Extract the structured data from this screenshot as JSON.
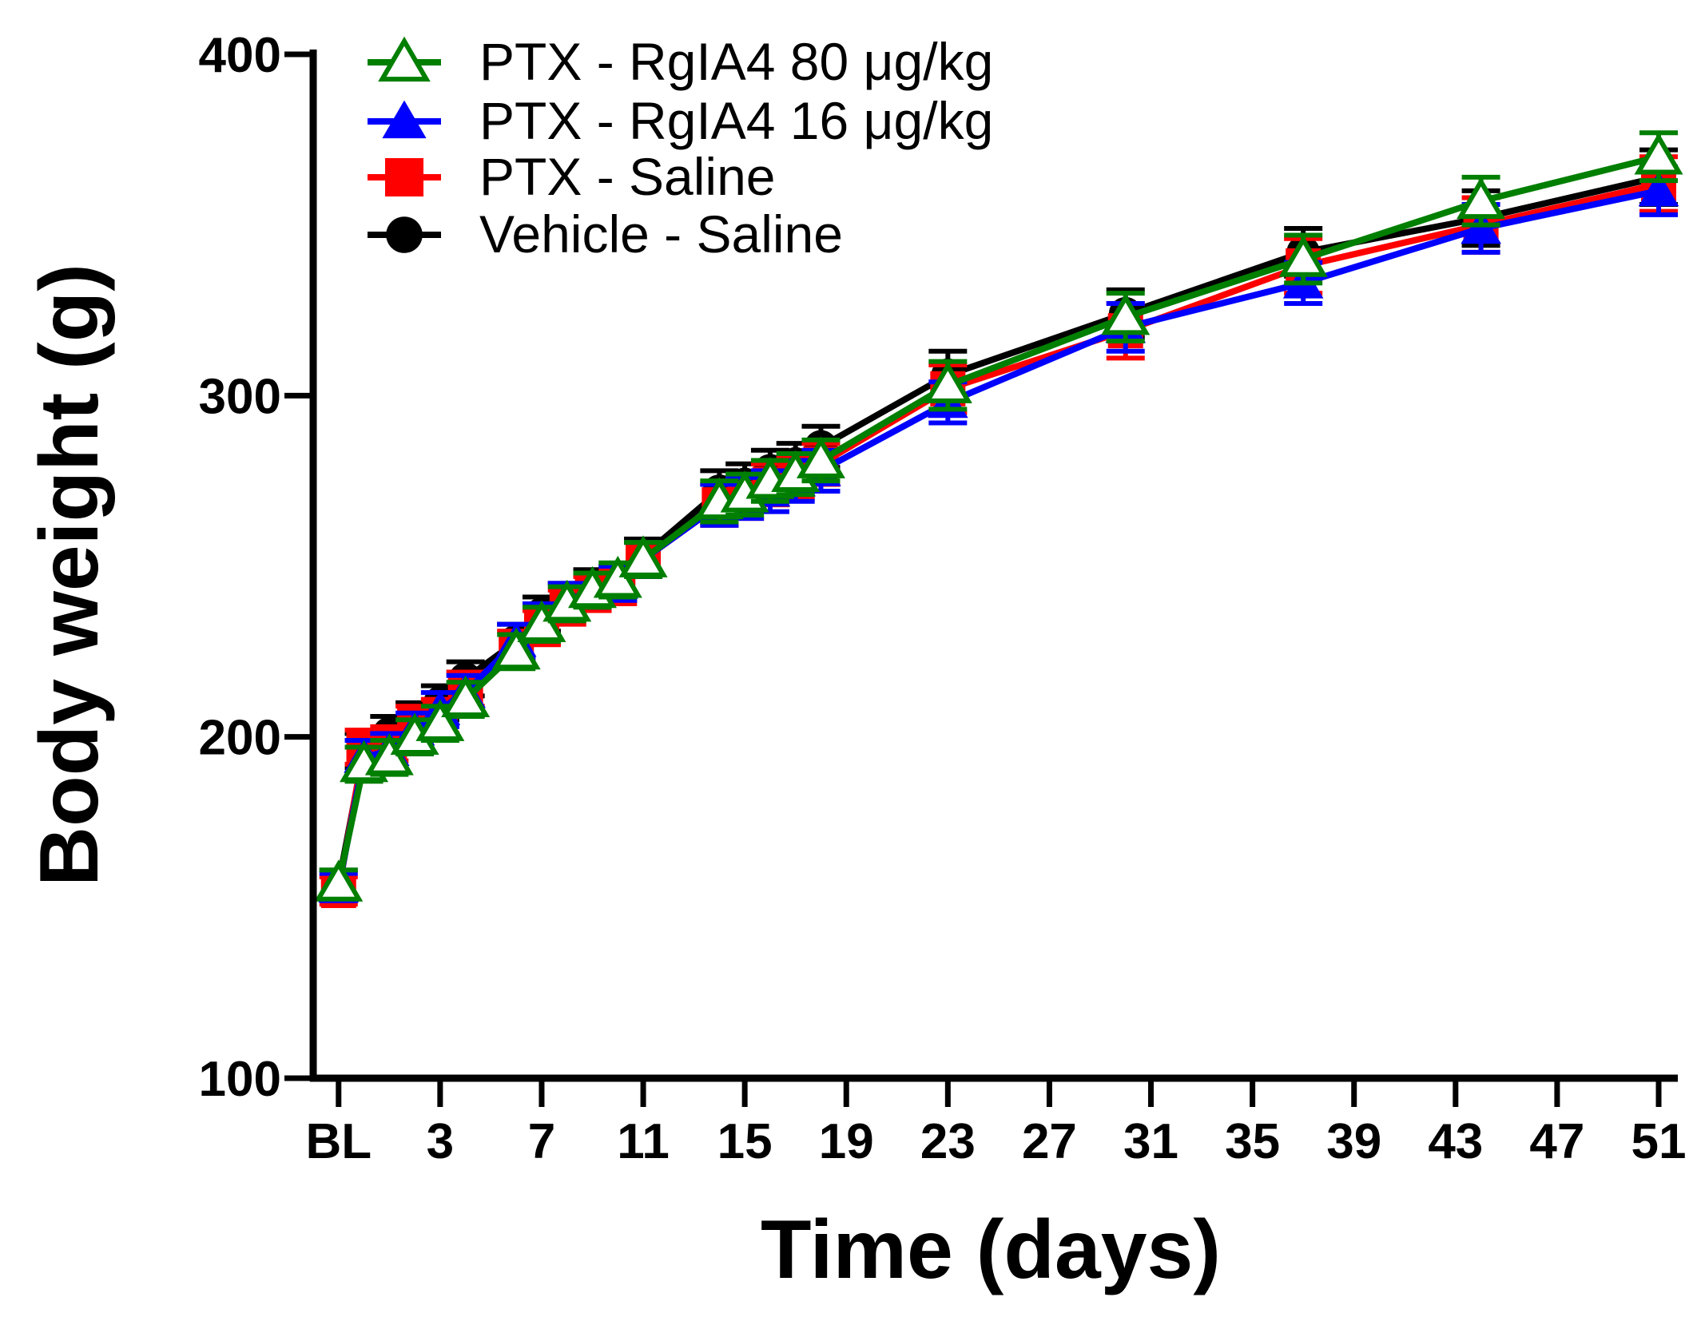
{
  "chart_data": {
    "type": "line",
    "title": "",
    "xlabel": "Time (days)",
    "ylabel": "Body weight (g)",
    "ylim": [
      100,
      400
    ],
    "yticks": [
      100,
      200,
      300,
      400
    ],
    "xlim": [
      -1,
      52
    ],
    "xticks": [
      {
        "value": 0,
        "label": "BL"
      },
      {
        "value": 4,
        "label": "3"
      },
      {
        "value": 8,
        "label": "7"
      },
      {
        "value": 12,
        "label": "11"
      },
      {
        "value": 16,
        "label": "15"
      },
      {
        "value": 20,
        "label": "19"
      },
      {
        "value": 24,
        "label": "23"
      },
      {
        "value": 28,
        "label": "27"
      },
      {
        "value": 32,
        "label": "31"
      },
      {
        "value": 36,
        "label": "35"
      },
      {
        "value": 40,
        "label": "39"
      },
      {
        "value": 44,
        "label": "43"
      },
      {
        "value": 48,
        "label": "47"
      },
      {
        "value": 52,
        "label": "51"
      }
    ],
    "legend_position": "top-left",
    "series": [
      {
        "name": "Vehicle - Saline",
        "color": "#000000",
        "marker": "circle",
        "x": [
          0,
          1,
          2,
          3,
          4,
          5,
          7,
          8,
          9,
          10,
          11,
          12,
          15,
          16,
          17,
          18,
          19,
          24,
          31,
          38,
          45,
          52
        ],
        "y": [
          157,
          196,
          201,
          205,
          210,
          217,
          228,
          236,
          240,
          244,
          245,
          253,
          272,
          274,
          278,
          280,
          285,
          306,
          324,
          342,
          352,
          364
        ],
        "err": [
          4,
          5,
          5,
          5,
          5,
          5,
          5,
          5,
          5,
          5,
          5,
          5,
          6,
          6,
          6,
          6,
          6,
          7,
          7,
          7,
          8,
          8
        ]
      },
      {
        "name": "PTX - Saline",
        "color": "#ff0000",
        "marker": "square",
        "x": [
          0,
          1,
          2,
          3,
          4,
          5,
          7,
          8,
          9,
          10,
          11,
          12,
          15,
          16,
          17,
          18,
          19,
          24,
          31,
          38,
          45,
          52
        ],
        "y": [
          155,
          197,
          198,
          204,
          206,
          214,
          226,
          232,
          238,
          242,
          244,
          252,
          268,
          270,
          274,
          276,
          280,
          302,
          319,
          338,
          350,
          362
        ],
        "err": [
          4,
          5,
          5,
          5,
          5,
          5,
          5,
          5,
          5,
          5,
          5,
          5,
          6,
          6,
          6,
          6,
          6,
          7,
          8,
          8,
          8,
          8
        ]
      },
      {
        "name": "PTX - RgIA4 16 μg/kg",
        "color": "#0000ff",
        "marker": "triangle-filled",
        "x": [
          0,
          1,
          2,
          3,
          4,
          5,
          7,
          8,
          9,
          10,
          11,
          12,
          15,
          16,
          17,
          18,
          19,
          24,
          31,
          38,
          45,
          52
        ],
        "y": [
          156,
          194,
          196,
          202,
          208,
          213,
          228,
          234,
          240,
          243,
          245,
          252,
          268,
          270,
          272,
          275,
          278,
          298,
          320,
          333,
          349,
          360
        ],
        "err": [
          4,
          5,
          5,
          5,
          5,
          5,
          5,
          5,
          5,
          5,
          5,
          5,
          6,
          6,
          6,
          6,
          6,
          6,
          7,
          6,
          7,
          7
        ]
      },
      {
        "name": "PTX - RgIA4 80 μg/kg",
        "color": "#007f00",
        "marker": "triangle-open",
        "x": [
          0,
          1,
          2,
          3,
          4,
          5,
          7,
          8,
          9,
          10,
          11,
          12,
          15,
          16,
          17,
          18,
          19,
          24,
          31,
          38,
          45,
          52
        ],
        "y": [
          157,
          192,
          194,
          200,
          204,
          211,
          225,
          233,
          239,
          243,
          246,
          252,
          269,
          271,
          275,
          277,
          281,
          303,
          323,
          340,
          357,
          370
        ],
        "err": [
          4,
          5,
          5,
          5,
          5,
          5,
          5,
          5,
          5,
          5,
          5,
          5,
          6,
          6,
          6,
          6,
          6,
          7,
          7,
          7,
          7,
          7
        ]
      }
    ],
    "legend_order": [
      3,
      2,
      1,
      0
    ]
  }
}
